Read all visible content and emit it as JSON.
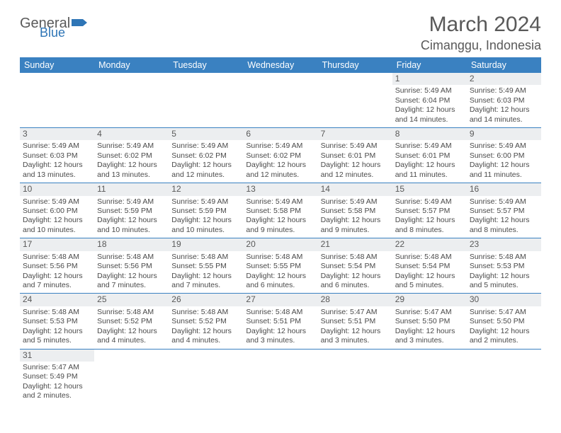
{
  "logo": {
    "text1": "General",
    "text2": "Blue"
  },
  "title": "March 2024",
  "location": "Cimanggu, Indonesia",
  "colors": {
    "header_bg": "#3a81c1",
    "header_fg": "#ffffff",
    "daynum_bg": "#eceef0",
    "text": "#4a4a4a",
    "rule": "#3a81c1",
    "title_color": "#595959",
    "logo_blue": "#2e75b6"
  },
  "dow": [
    "Sunday",
    "Monday",
    "Tuesday",
    "Wednesday",
    "Thursday",
    "Friday",
    "Saturday"
  ],
  "weeks": [
    [
      null,
      null,
      null,
      null,
      null,
      {
        "n": "1",
        "sr": "Sunrise: 5:49 AM",
        "ss": "Sunset: 6:04 PM",
        "dl": "Daylight: 12 hours and 14 minutes."
      },
      {
        "n": "2",
        "sr": "Sunrise: 5:49 AM",
        "ss": "Sunset: 6:03 PM",
        "dl": "Daylight: 12 hours and 14 minutes."
      }
    ],
    [
      {
        "n": "3",
        "sr": "Sunrise: 5:49 AM",
        "ss": "Sunset: 6:03 PM",
        "dl": "Daylight: 12 hours and 13 minutes."
      },
      {
        "n": "4",
        "sr": "Sunrise: 5:49 AM",
        "ss": "Sunset: 6:02 PM",
        "dl": "Daylight: 12 hours and 13 minutes."
      },
      {
        "n": "5",
        "sr": "Sunrise: 5:49 AM",
        "ss": "Sunset: 6:02 PM",
        "dl": "Daylight: 12 hours and 12 minutes."
      },
      {
        "n": "6",
        "sr": "Sunrise: 5:49 AM",
        "ss": "Sunset: 6:02 PM",
        "dl": "Daylight: 12 hours and 12 minutes."
      },
      {
        "n": "7",
        "sr": "Sunrise: 5:49 AM",
        "ss": "Sunset: 6:01 PM",
        "dl": "Daylight: 12 hours and 12 minutes."
      },
      {
        "n": "8",
        "sr": "Sunrise: 5:49 AM",
        "ss": "Sunset: 6:01 PM",
        "dl": "Daylight: 12 hours and 11 minutes."
      },
      {
        "n": "9",
        "sr": "Sunrise: 5:49 AM",
        "ss": "Sunset: 6:00 PM",
        "dl": "Daylight: 12 hours and 11 minutes."
      }
    ],
    [
      {
        "n": "10",
        "sr": "Sunrise: 5:49 AM",
        "ss": "Sunset: 6:00 PM",
        "dl": "Daylight: 12 hours and 10 minutes."
      },
      {
        "n": "11",
        "sr": "Sunrise: 5:49 AM",
        "ss": "Sunset: 5:59 PM",
        "dl": "Daylight: 12 hours and 10 minutes."
      },
      {
        "n": "12",
        "sr": "Sunrise: 5:49 AM",
        "ss": "Sunset: 5:59 PM",
        "dl": "Daylight: 12 hours and 10 minutes."
      },
      {
        "n": "13",
        "sr": "Sunrise: 5:49 AM",
        "ss": "Sunset: 5:58 PM",
        "dl": "Daylight: 12 hours and 9 minutes."
      },
      {
        "n": "14",
        "sr": "Sunrise: 5:49 AM",
        "ss": "Sunset: 5:58 PM",
        "dl": "Daylight: 12 hours and 9 minutes."
      },
      {
        "n": "15",
        "sr": "Sunrise: 5:49 AM",
        "ss": "Sunset: 5:57 PM",
        "dl": "Daylight: 12 hours and 8 minutes."
      },
      {
        "n": "16",
        "sr": "Sunrise: 5:49 AM",
        "ss": "Sunset: 5:57 PM",
        "dl": "Daylight: 12 hours and 8 minutes."
      }
    ],
    [
      {
        "n": "17",
        "sr": "Sunrise: 5:48 AM",
        "ss": "Sunset: 5:56 PM",
        "dl": "Daylight: 12 hours and 7 minutes."
      },
      {
        "n": "18",
        "sr": "Sunrise: 5:48 AM",
        "ss": "Sunset: 5:56 PM",
        "dl": "Daylight: 12 hours and 7 minutes."
      },
      {
        "n": "19",
        "sr": "Sunrise: 5:48 AM",
        "ss": "Sunset: 5:55 PM",
        "dl": "Daylight: 12 hours and 7 minutes."
      },
      {
        "n": "20",
        "sr": "Sunrise: 5:48 AM",
        "ss": "Sunset: 5:55 PM",
        "dl": "Daylight: 12 hours and 6 minutes."
      },
      {
        "n": "21",
        "sr": "Sunrise: 5:48 AM",
        "ss": "Sunset: 5:54 PM",
        "dl": "Daylight: 12 hours and 6 minutes."
      },
      {
        "n": "22",
        "sr": "Sunrise: 5:48 AM",
        "ss": "Sunset: 5:54 PM",
        "dl": "Daylight: 12 hours and 5 minutes."
      },
      {
        "n": "23",
        "sr": "Sunrise: 5:48 AM",
        "ss": "Sunset: 5:53 PM",
        "dl": "Daylight: 12 hours and 5 minutes."
      }
    ],
    [
      {
        "n": "24",
        "sr": "Sunrise: 5:48 AM",
        "ss": "Sunset: 5:53 PM",
        "dl": "Daylight: 12 hours and 5 minutes."
      },
      {
        "n": "25",
        "sr": "Sunrise: 5:48 AM",
        "ss": "Sunset: 5:52 PM",
        "dl": "Daylight: 12 hours and 4 minutes."
      },
      {
        "n": "26",
        "sr": "Sunrise: 5:48 AM",
        "ss": "Sunset: 5:52 PM",
        "dl": "Daylight: 12 hours and 4 minutes."
      },
      {
        "n": "27",
        "sr": "Sunrise: 5:48 AM",
        "ss": "Sunset: 5:51 PM",
        "dl": "Daylight: 12 hours and 3 minutes."
      },
      {
        "n": "28",
        "sr": "Sunrise: 5:47 AM",
        "ss": "Sunset: 5:51 PM",
        "dl": "Daylight: 12 hours and 3 minutes."
      },
      {
        "n": "29",
        "sr": "Sunrise: 5:47 AM",
        "ss": "Sunset: 5:50 PM",
        "dl": "Daylight: 12 hours and 3 minutes."
      },
      {
        "n": "30",
        "sr": "Sunrise: 5:47 AM",
        "ss": "Sunset: 5:50 PM",
        "dl": "Daylight: 12 hours and 2 minutes."
      }
    ],
    [
      {
        "n": "31",
        "sr": "Sunrise: 5:47 AM",
        "ss": "Sunset: 5:49 PM",
        "dl": "Daylight: 12 hours and 2 minutes."
      },
      null,
      null,
      null,
      null,
      null,
      null
    ]
  ]
}
